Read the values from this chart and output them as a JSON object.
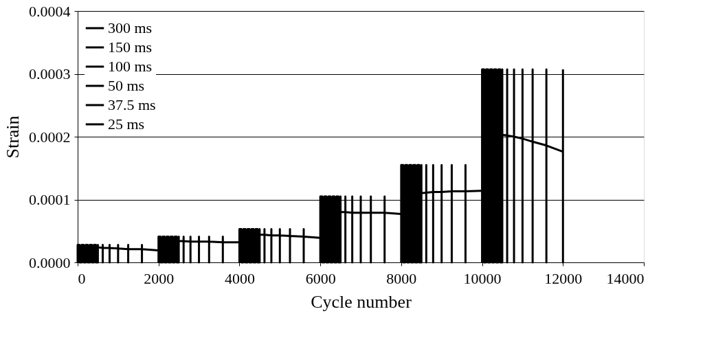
{
  "chart_data": {
    "type": "line",
    "xlabel": "Cycle number",
    "ylabel": "Strain",
    "xlim": [
      0,
      14000
    ],
    "xticks": [
      0,
      2000,
      4000,
      6000,
      8000,
      10000,
      12000,
      14000
    ],
    "ylim": [
      0,
      0.0004
    ],
    "yticks": [
      {
        "value": 0,
        "label": "0.0000"
      },
      {
        "value": 0.0001,
        "label": "0.0001"
      },
      {
        "value": 0.0002,
        "label": "0.0002"
      },
      {
        "value": 0.0003,
        "label": "0.0003"
      },
      {
        "value": 0.0004,
        "label": "0.0004"
      }
    ],
    "grid": "y",
    "legend": "top left",
    "marker": "none",
    "line_style": "solid",
    "series": [
      {
        "name": "300 ms",
        "color": "#000000",
        "x": [
          0,
          0,
          50,
          50,
          100,
          100,
          150,
          150,
          200,
          200,
          250,
          250,
          300,
          300,
          350,
          350,
          400,
          400,
          450,
          450,
          500,
          500,
          500,
          620,
          620,
          620,
          620,
          790,
          790,
          790,
          790,
          1000,
          1000,
          1000,
          1000,
          1250,
          1250,
          1250,
          1250,
          1590,
          1590,
          1590,
          1590,
          1990
        ],
        "values": [
          0,
          2.8e-05,
          2.8e-05,
          0,
          0,
          2.8e-05,
          2.8e-05,
          0,
          0,
          2.8e-05,
          2.8e-05,
          0,
          0,
          2.8e-05,
          2.8e-05,
          0,
          0,
          2.8e-05,
          2.8e-05,
          0,
          0,
          2.8e-05,
          2.4e-05,
          2.3e-05,
          0,
          2.8e-05,
          2.3e-05,
          2.3e-05,
          0,
          2.8e-05,
          2.3e-05,
          2.2e-05,
          0,
          2.8e-05,
          2.2e-05,
          2.1e-05,
          0,
          2.8e-05,
          2.1e-05,
          2.1e-05,
          0,
          2.8e-05,
          2.1e-05,
          1.9e-05
        ]
      },
      {
        "name": "150 ms",
        "color": "#000000",
        "x": [
          2000,
          2000,
          2050,
          2050,
          2100,
          2100,
          2150,
          2150,
          2200,
          2200,
          2250,
          2250,
          2300,
          2300,
          2350,
          2350,
          2400,
          2400,
          2450,
          2450,
          2500,
          2500,
          2500,
          2620,
          2620,
          2620,
          2620,
          2790,
          2790,
          2790,
          2790,
          3000,
          3000,
          3000,
          3000,
          3250,
          3250,
          3250,
          3250,
          3590,
          3590,
          3590,
          3590,
          3990
        ],
        "values": [
          0,
          4.1e-05,
          4.1e-05,
          0,
          0,
          4.1e-05,
          4.1e-05,
          0,
          0,
          4.1e-05,
          4.1e-05,
          0,
          0,
          4.1e-05,
          4.1e-05,
          0,
          0,
          4.1e-05,
          4.1e-05,
          0,
          0,
          4.1e-05,
          3.4e-05,
          3.4e-05,
          0,
          4.1e-05,
          3.4e-05,
          3.3e-05,
          0,
          4.1e-05,
          3.3e-05,
          3.3e-05,
          0,
          4.1e-05,
          3.3e-05,
          3.3e-05,
          0,
          4.1e-05,
          3.3e-05,
          3.2e-05,
          0,
          4.1e-05,
          3.2e-05,
          3.2e-05
        ]
      },
      {
        "name": "100 ms",
        "color": "#000000",
        "x": [
          4000,
          4000,
          4050,
          4050,
          4100,
          4100,
          4150,
          4150,
          4200,
          4200,
          4250,
          4250,
          4300,
          4300,
          4350,
          4350,
          4400,
          4400,
          4450,
          4450,
          4500,
          4500,
          4500,
          4620,
          4620,
          4620,
          4620,
          4790,
          4790,
          4790,
          4790,
          5000,
          5000,
          5000,
          5000,
          5250,
          5250,
          5250,
          5250,
          5590,
          5590,
          5590,
          5590,
          5990
        ],
        "values": [
          0,
          5.3e-05,
          5.3e-05,
          0,
          0,
          5.3e-05,
          5.3e-05,
          0,
          0,
          5.3e-05,
          5.3e-05,
          0,
          0,
          5.3e-05,
          5.3e-05,
          0,
          0,
          5.3e-05,
          5.3e-05,
          0,
          0,
          5.3e-05,
          4.4e-05,
          4.4e-05,
          0,
          5.3e-05,
          4.4e-05,
          4.3e-05,
          0,
          5.3e-05,
          4.3e-05,
          4.3e-05,
          0,
          5.3e-05,
          4.3e-05,
          4.2e-05,
          0,
          5.3e-05,
          4.2e-05,
          4.1e-05,
          0,
          5.3e-05,
          4.1e-05,
          3.9e-05
        ]
      },
      {
        "name": "50 ms",
        "color": "#000000",
        "x": [
          6000,
          6000,
          6050,
          6050,
          6100,
          6100,
          6150,
          6150,
          6200,
          6200,
          6250,
          6250,
          6300,
          6300,
          6350,
          6350,
          6400,
          6400,
          6450,
          6450,
          6500,
          6500,
          6500,
          6620,
          6620,
          6620,
          6620,
          6790,
          6790,
          6790,
          6790,
          7000,
          7000,
          7000,
          7000,
          7250,
          7250,
          7250,
          7250,
          7590,
          7590,
          7590,
          7590,
          7990
        ],
        "values": [
          0,
          0.000105,
          0.000105,
          0,
          0,
          0.000105,
          0.000105,
          0,
          0,
          0.000105,
          0.000105,
          0,
          0,
          0.000105,
          0.000105,
          0,
          0,
          0.000105,
          0.000105,
          0,
          0,
          0.000105,
          8e-05,
          8e-05,
          0,
          0.000105,
          8e-05,
          7.9e-05,
          0,
          0.000105,
          7.9e-05,
          7.9e-05,
          0,
          0.000105,
          7.9e-05,
          7.9e-05,
          0,
          0.000105,
          7.9e-05,
          7.9e-05,
          0,
          0.000105,
          7.9e-05,
          7.7e-05
        ]
      },
      {
        "name": "37.5 ms",
        "color": "#000000",
        "x": [
          8000,
          8000,
          8050,
          8050,
          8100,
          8100,
          8150,
          8150,
          8200,
          8200,
          8250,
          8250,
          8300,
          8300,
          8350,
          8350,
          8400,
          8400,
          8450,
          8450,
          8500,
          8500,
          8500,
          8620,
          8620,
          8620,
          8620,
          8790,
          8790,
          8790,
          8790,
          9000,
          9000,
          9000,
          9000,
          9250,
          9250,
          9250,
          9250,
          9590,
          9590,
          9590,
          9590,
          9990
        ],
        "values": [
          0,
          0.000155,
          0.000155,
          0,
          0,
          0.000155,
          0.000155,
          0,
          0,
          0.000155,
          0.000155,
          0,
          0,
          0.000155,
          0.000155,
          0,
          0,
          0.000155,
          0.000155,
          0,
          0,
          0.000155,
          0.00011,
          0.000111,
          0,
          0.000155,
          0.000111,
          0.000112,
          0,
          0.000155,
          0.000112,
          0.000112,
          0,
          0.000155,
          0.000112,
          0.000113,
          0,
          0.000155,
          0.000113,
          0.000113,
          0,
          0.000155,
          0.000113,
          0.000114
        ]
      },
      {
        "name": "25 ms",
        "color": "#000000",
        "x": [
          10000,
          10000,
          10050,
          10050,
          10100,
          10100,
          10150,
          10150,
          10200,
          10200,
          10250,
          10250,
          10300,
          10300,
          10350,
          10350,
          10400,
          10400,
          10450,
          10450,
          10500,
          10500,
          10500,
          10620,
          10620,
          10620,
          10620,
          10790,
          10790,
          10790,
          10790,
          11000,
          11000,
          11000,
          11000,
          11250,
          11250,
          11250,
          11250,
          11590,
          11590,
          11590,
          11590,
          12000,
          12000,
          12000
        ],
        "values": [
          0,
          0.000307,
          0.000307,
          0,
          0,
          0.000307,
          0.000307,
          0,
          0,
          0.000307,
          0.000307,
          0,
          0,
          0.000307,
          0.000307,
          0,
          0,
          0.000307,
          0.000307,
          0,
          0,
          0.000307,
          0.000203,
          0.000202,
          0,
          0.000307,
          0.000202,
          0.0002,
          0,
          0.000307,
          0.0002,
          0.000197,
          0,
          0.000307,
          0.000197,
          0.000192,
          0,
          0.000307,
          0.000192,
          0.000186,
          0,
          0.000307,
          0.000186,
          0.000176,
          0,
          0.000307
        ]
      }
    ]
  }
}
